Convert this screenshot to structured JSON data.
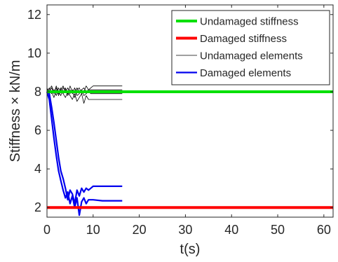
{
  "chart_data": {
    "type": "line",
    "xlabel": "t(s)",
    "ylabel": "Stiffness × kN/m",
    "xlim": [
      0,
      62
    ],
    "ylim": [
      1.5,
      12.5
    ],
    "xticks": [
      0,
      10,
      20,
      30,
      40,
      50,
      60
    ],
    "yticks": [
      2,
      4,
      6,
      8,
      10,
      12
    ],
    "grid": false,
    "legend_position": "top-right",
    "series": [
      {
        "name": "Undamaged stiffness",
        "color": "#00e000",
        "style": "thick",
        "x": [
          0,
          62
        ],
        "y": [
          8.0,
          8.0
        ]
      },
      {
        "name": "Damaged stiffness",
        "color": "#ff0000",
        "style": "thick",
        "x": [
          0,
          62
        ],
        "y": [
          2.0,
          2.0
        ]
      },
      {
        "name": "Undamaged elements",
        "color": "#000000",
        "style": "thin",
        "x": [
          0,
          0.5,
          1,
          1.5,
          2,
          2.5,
          3,
          3.5,
          4,
          4.5,
          5,
          5.5,
          6,
          6.5,
          7,
          7.5,
          8,
          8.5,
          9,
          9.5,
          10,
          12,
          14,
          16.3
        ],
        "y": [
          8.1,
          8.0,
          8.2,
          7.9,
          8.3,
          8.0,
          7.8,
          8.2,
          8.1,
          7.9,
          8.3,
          8.0,
          7.7,
          8.1,
          8.2,
          7.9,
          8.0,
          8.3,
          8.1,
          8.2,
          8.3,
          8.3,
          8.3,
          8.3
        ]
      },
      {
        "name": "",
        "color": "#000000",
        "style": "thin",
        "x": [
          0,
          0.5,
          1,
          1.5,
          2,
          2.5,
          3,
          3.5,
          4,
          4.5,
          5,
          5.5,
          6,
          6.5,
          7,
          7.5,
          8,
          8.5,
          9,
          9.5,
          10,
          12,
          14,
          16.3
        ],
        "y": [
          8.0,
          8.2,
          7.9,
          8.1,
          7.8,
          8.2,
          8.0,
          7.9,
          8.2,
          7.8,
          8.1,
          7.9,
          8.2,
          7.8,
          7.9,
          8.1,
          7.8,
          7.9,
          8.0,
          7.9,
          7.9,
          7.9,
          7.9,
          7.9
        ]
      },
      {
        "name": "",
        "color": "#000000",
        "style": "thin",
        "x": [
          0,
          0.5,
          1,
          1.5,
          2,
          2.5,
          3,
          3.5,
          4,
          4.5,
          5,
          5.5,
          6,
          6.5,
          7,
          7.5,
          8,
          8.5,
          9,
          9.5,
          10,
          12,
          14,
          16.3
        ],
        "y": [
          8.2,
          7.9,
          8.0,
          7.7,
          8.1,
          7.8,
          8.2,
          7.9,
          7.7,
          8.0,
          7.8,
          7.6,
          7.9,
          7.5,
          7.7,
          7.9,
          7.4,
          7.8,
          7.6,
          7.6,
          7.6,
          7.6,
          7.6,
          7.6
        ]
      },
      {
        "name": "",
        "color": "#000000",
        "style": "thin",
        "x": [
          0,
          0.5,
          1,
          1.5,
          2,
          2.5,
          3,
          3.5,
          4,
          4.5,
          5,
          5.5,
          6,
          6.5,
          7,
          7.5,
          8,
          8.5,
          9,
          9.5,
          10,
          12,
          14,
          16.3
        ],
        "y": [
          8.0,
          8.1,
          8.3,
          8.0,
          8.2,
          7.9,
          8.1,
          8.3,
          8.0,
          8.2,
          7.9,
          8.1,
          8.0,
          8.2,
          8.0,
          8.1,
          8.2,
          8.0,
          8.1,
          8.1,
          8.1,
          8.1,
          8.1,
          8.1
        ]
      },
      {
        "name": "Damaged elements",
        "color": "#0000ee",
        "style": "medium",
        "x": [
          0,
          0.5,
          1,
          1.5,
          2,
          2.5,
          3,
          3.5,
          4,
          4.5,
          5,
          5.5,
          6,
          6.5,
          7,
          7.5,
          8,
          8.5,
          9,
          9.5,
          10,
          12,
          14,
          16.3
        ],
        "y": [
          8.0,
          7.6,
          6.6,
          5.6,
          4.7,
          3.9,
          3.4,
          2.9,
          2.5,
          2.8,
          2.2,
          2.6,
          2.0,
          2.5,
          1.6,
          2.3,
          2.5,
          2.2,
          2.4,
          2.4,
          2.4,
          2.35,
          2.35,
          2.35
        ]
      },
      {
        "name": "",
        "color": "#0000ee",
        "style": "medium",
        "x": [
          0,
          0.5,
          1,
          1.5,
          2,
          2.5,
          3,
          3.5,
          4,
          4.5,
          5,
          5.5,
          6,
          6.5,
          7,
          7.5,
          8,
          8.5,
          9,
          9.5,
          10,
          12,
          14,
          16.3
        ],
        "y": [
          8.0,
          7.9,
          7.2,
          6.4,
          5.5,
          4.6,
          3.9,
          3.5,
          3.0,
          2.4,
          2.9,
          2.7,
          2.2,
          2.9,
          2.6,
          3.0,
          2.8,
          3.0,
          2.9,
          3.0,
          3.1,
          3.1,
          3.1,
          3.1
        ]
      }
    ]
  }
}
